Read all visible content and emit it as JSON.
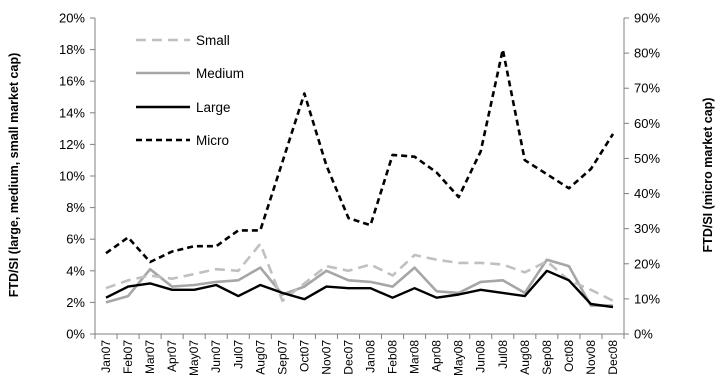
{
  "chart_data": {
    "type": "line",
    "categories": [
      "Jan07",
      "Feb07",
      "Mar07",
      "Apr07",
      "May07",
      "Jun07",
      "Jul07",
      "Aug07",
      "Sep07",
      "Oct07",
      "Nov07",
      "Dec07",
      "Jan08",
      "Feb08",
      "Mar08",
      "Apr08",
      "May08",
      "Jun08",
      "Jul08",
      "Aug08",
      "Sep08",
      "Oct08",
      "Nov08",
      "Dec08"
    ],
    "ylabel_left": "FTD/SI (large, medium, small market cap)",
    "ylabel_right": "FTD/SI (micro market cap)",
    "ylim_left": [
      0,
      0.2
    ],
    "ylim_right": [
      0,
      0.9
    ],
    "yticks_left": [
      "0%",
      "2%",
      "4%",
      "6%",
      "8%",
      "10%",
      "12%",
      "14%",
      "16%",
      "18%",
      "20%"
    ],
    "yticks_right": [
      "0%",
      "10%",
      "20%",
      "30%",
      "40%",
      "50%",
      "60%",
      "70%",
      "80%",
      "90%"
    ],
    "legend_position": "top-left",
    "series": [
      {
        "name": "Small",
        "axis": "left",
        "color": "#c0c0c0",
        "dash": "dashed",
        "values": [
          0.029,
          0.034,
          0.037,
          0.035,
          0.038,
          0.041,
          0.04,
          0.057,
          0.021,
          0.032,
          0.043,
          0.04,
          0.044,
          0.037,
          0.05,
          0.047,
          0.045,
          0.045,
          0.044,
          0.039,
          0.046,
          0.034,
          0.028,
          0.021
        ]
      },
      {
        "name": "Medium",
        "axis": "left",
        "color": "#a6a6a6",
        "dash": "solid",
        "values": [
          0.02,
          0.024,
          0.041,
          0.03,
          0.031,
          0.033,
          0.034,
          0.042,
          0.025,
          0.03,
          0.04,
          0.034,
          0.033,
          0.03,
          0.042,
          0.027,
          0.026,
          0.033,
          0.034,
          0.026,
          0.047,
          0.043,
          0.018,
          0.018
        ]
      },
      {
        "name": "Large",
        "axis": "left",
        "color": "#000000",
        "dash": "solid",
        "values": [
          0.023,
          0.03,
          0.032,
          0.028,
          0.028,
          0.031,
          0.024,
          0.031,
          0.026,
          0.022,
          0.03,
          0.029,
          0.029,
          0.023,
          0.029,
          0.023,
          0.025,
          0.028,
          0.026,
          0.024,
          0.04,
          0.034,
          0.019,
          0.017
        ]
      },
      {
        "name": "Micro",
        "axis": "right",
        "color": "#000000",
        "dash": "dashed",
        "values": [
          0.23,
          0.275,
          0.205,
          0.235,
          0.25,
          0.25,
          0.295,
          0.295,
          0.49,
          0.685,
          0.48,
          0.33,
          0.31,
          0.51,
          0.505,
          0.46,
          0.39,
          0.52,
          0.81,
          0.495,
          0.455,
          0.415,
          0.47,
          0.57
        ]
      }
    ]
  }
}
